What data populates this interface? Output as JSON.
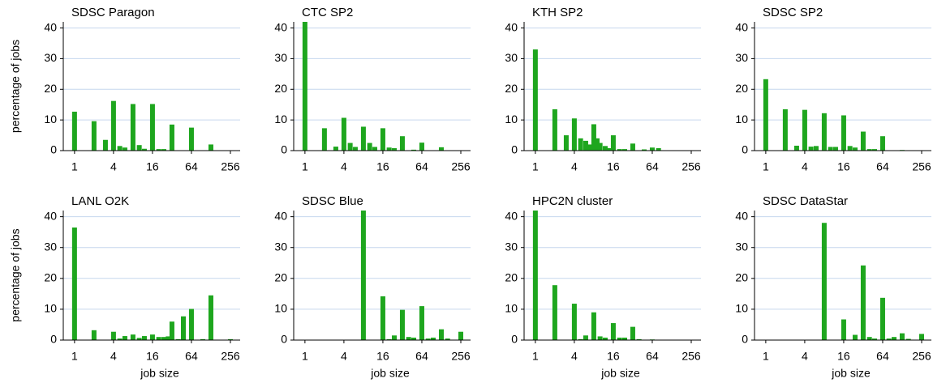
{
  "chart_data": [
    {
      "type": "bar",
      "title": "SDSC Paragon",
      "y_label": "percentage of jobs",
      "color": "#1ea61e",
      "grid": true,
      "log_x": true,
      "x": [
        1,
        2,
        3,
        4,
        5,
        6,
        8,
        10,
        12,
        16,
        20,
        24,
        32,
        64,
        128,
        256
      ],
      "values": [
        12.7,
        9.6,
        3.5,
        16.2,
        1.5,
        1.0,
        15.2,
        1.8,
        0.6,
        15.2,
        0.5,
        0.5,
        8.5,
        7.5,
        2,
        0.1
      ],
      "xlim": [
        0.67,
        362
      ],
      "ylim": [
        0,
        42
      ],
      "xticks": [
        1,
        4,
        16,
        64,
        256
      ],
      "yticks": [
        0,
        10,
        20,
        30,
        40
      ]
    },
    {
      "type": "bar",
      "title": "CTC SP2",
      "color": "#1ea61e",
      "grid": true,
      "log_x": true,
      "x": [
        1,
        2,
        3,
        4,
        5,
        6,
        8,
        10,
        12,
        16,
        20,
        24,
        32,
        48,
        64,
        128,
        256
      ],
      "values": [
        42,
        7.3,
        1.3,
        10.7,
        2.5,
        1.2,
        7.8,
        2.5,
        1.2,
        7.3,
        1,
        0.8,
        4.7,
        0.3,
        2.6,
        1.1,
        0.1
      ],
      "xlim": [
        0.67,
        362
      ],
      "ylim": [
        0,
        42
      ],
      "xticks": [
        1,
        4,
        16,
        64,
        256
      ],
      "yticks": [
        0,
        10,
        20,
        30,
        40
      ]
    },
    {
      "type": "bar",
      "title": "KTH SP2",
      "color": "#1ea61e",
      "grid": true,
      "log_x": true,
      "x": [
        1,
        2,
        3,
        4,
        5,
        6,
        7,
        8,
        9,
        10,
        12,
        14,
        16,
        20,
        24,
        32,
        48,
        64,
        80
      ],
      "values": [
        33,
        13.5,
        5,
        10.5,
        4,
        3.2,
        2,
        8.6,
        4,
        2.5,
        1.5,
        0.8,
        5,
        0.5,
        0.5,
        2.3,
        0.4,
        1,
        0.8
      ],
      "xlim": [
        0.67,
        362
      ],
      "ylim": [
        0,
        42
      ],
      "xticks": [
        1,
        4,
        16,
        64,
        256
      ],
      "yticks": [
        0,
        10,
        20,
        30,
        40
      ]
    },
    {
      "type": "bar",
      "title": "SDSC SP2",
      "color": "#1ea61e",
      "grid": true,
      "log_x": true,
      "x": [
        1,
        2,
        3,
        4,
        5,
        6,
        8,
        10,
        12,
        16,
        20,
        24,
        32,
        40,
        48,
        64,
        128
      ],
      "values": [
        23.3,
        13.5,
        1.6,
        13.3,
        1.3,
        1.5,
        12.2,
        1.2,
        1.2,
        11.5,
        1.5,
        1,
        6.2,
        0.5,
        0.5,
        4.7,
        0.2
      ],
      "xlim": [
        0.67,
        362
      ],
      "ylim": [
        0,
        42
      ],
      "xticks": [
        1,
        4,
        16,
        64,
        256
      ],
      "yticks": [
        0,
        10,
        20,
        30,
        40
      ]
    },
    {
      "type": "bar",
      "title": "LANL O2K",
      "y_label": "percentage of jobs",
      "x_label": "job size",
      "color": "#1ea61e",
      "grid": true,
      "log_x": true,
      "x": [
        1,
        2,
        4,
        5,
        6,
        8,
        10,
        12,
        16,
        20,
        24,
        28,
        32,
        40,
        48,
        64,
        96,
        128,
        256
      ],
      "values": [
        36.5,
        3.2,
        2.7,
        0.5,
        1.3,
        1.8,
        0.7,
        1.3,
        1.8,
        1,
        1,
        1.2,
        6,
        0.3,
        7.7,
        10.1,
        0.3,
        14.5,
        0.3
      ],
      "xlim": [
        0.67,
        362
      ],
      "ylim": [
        0,
        42
      ],
      "xticks": [
        1,
        4,
        16,
        64,
        256
      ],
      "yticks": [
        0,
        10,
        20,
        30,
        40
      ]
    },
    {
      "type": "bar",
      "title": "SDSC Blue",
      "x_label": "job size",
      "color": "#1ea61e",
      "grid": true,
      "log_x": true,
      "x": [
        8,
        16,
        20,
        24,
        32,
        40,
        48,
        64,
        80,
        96,
        128,
        160,
        256
      ],
      "values": [
        46,
        14.2,
        0.3,
        1.5,
        9.8,
        1,
        0.8,
        11,
        0.5,
        0.8,
        3.5,
        0.5,
        2.7
      ],
      "xlim": [
        0.67,
        362
      ],
      "ylim": [
        0,
        42
      ],
      "xticks": [
        1,
        4,
        16,
        64,
        256
      ],
      "yticks": [
        0,
        10,
        20,
        30,
        40
      ]
    },
    {
      "type": "bar",
      "title": "HPC2N cluster",
      "x_label": "job size",
      "color": "#1ea61e",
      "grid": true,
      "log_x": true,
      "x": [
        1,
        2,
        4,
        5,
        6,
        8,
        10,
        12,
        16,
        20,
        24,
        32,
        40,
        64
      ],
      "values": [
        42,
        17.8,
        11.8,
        0.3,
        1.5,
        9,
        1.2,
        0.8,
        5.5,
        0.8,
        0.8,
        4.3,
        0.3,
        0.2
      ],
      "xlim": [
        0.67,
        362
      ],
      "ylim": [
        0,
        42
      ],
      "xticks": [
        1,
        4,
        16,
        64,
        256
      ],
      "yticks": [
        0,
        10,
        20,
        30,
        40
      ]
    },
    {
      "type": "bar",
      "title": "SDSC DataStar",
      "x_label": "job size",
      "color": "#1ea61e",
      "grid": true,
      "log_x": true,
      "x": [
        8,
        16,
        24,
        32,
        40,
        48,
        64,
        80,
        96,
        128,
        160,
        256
      ],
      "values": [
        38,
        6.7,
        1.7,
        24.2,
        1,
        0.5,
        13.7,
        0.5,
        1,
        2.2,
        0.4,
        2
      ],
      "xlim": [
        0.67,
        362
      ],
      "ylim": [
        0,
        42
      ],
      "xticks": [
        1,
        4,
        16,
        64,
        256
      ],
      "yticks": [
        0,
        10,
        20,
        30,
        40
      ]
    }
  ]
}
